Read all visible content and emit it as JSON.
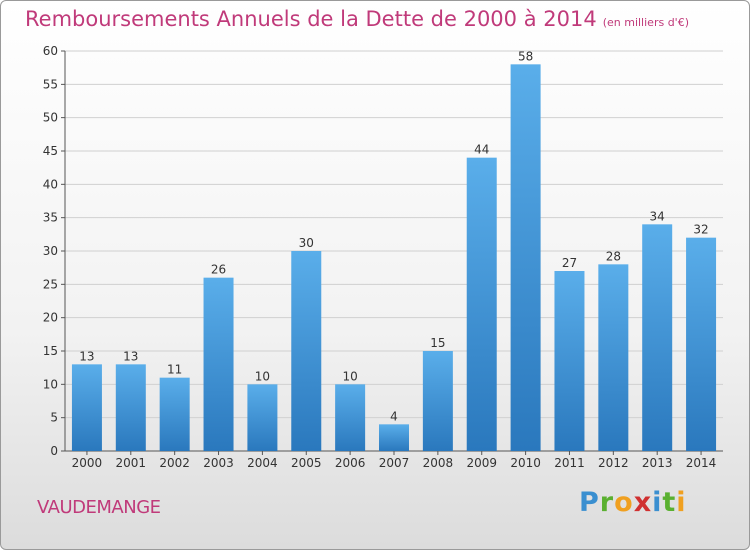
{
  "title": {
    "main": "Remboursements Annuels de la Dette de 2000 à 2014",
    "unit": "(en milliers d'€)"
  },
  "commune": "VAUDEMANGE",
  "logo": {
    "text": "Proxiti"
  },
  "colors": {
    "title": "#c03a7a",
    "bar_top": "#5aaeea",
    "bar_bottom": "#2a78bd",
    "grid": "#d0d0d0"
  },
  "chart_data": {
    "type": "bar",
    "title": "Remboursements Annuels de la Dette de 2000 à 2014",
    "subtitle": "(en milliers d'€)",
    "xlabel": "",
    "ylabel": "",
    "categories": [
      "2000",
      "2001",
      "2002",
      "2003",
      "2004",
      "2005",
      "2006",
      "2007",
      "2008",
      "2009",
      "2010",
      "2011",
      "2012",
      "2013",
      "2014"
    ],
    "values": [
      13,
      13,
      11,
      26,
      10,
      30,
      10,
      4,
      15,
      44,
      58,
      27,
      28,
      34,
      32
    ],
    "ylim": [
      0,
      60
    ],
    "yticks": [
      0,
      5,
      10,
      15,
      20,
      25,
      30,
      35,
      40,
      45,
      50,
      55,
      60
    ],
    "grid": true,
    "legend": "none"
  }
}
